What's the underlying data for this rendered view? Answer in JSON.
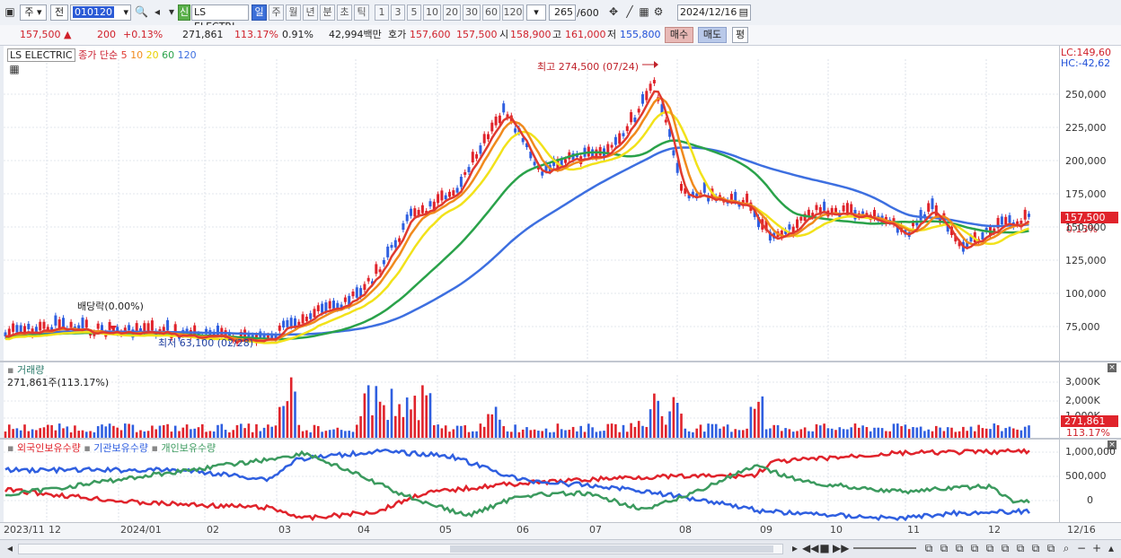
{
  "toolbar": {
    "market": "주",
    "prev": "전",
    "code": "010120",
    "stock_name": "LS ELECTRI",
    "badge_new": "신",
    "periods": [
      "일",
      "주",
      "월",
      "년",
      "분",
      "초",
      "틱"
    ],
    "active_period": "일",
    "intervals": [
      "1",
      "3",
      "5",
      "10",
      "20",
      "30",
      "60",
      "120"
    ],
    "count": "265",
    "count_max": "/600",
    "date": "2024/12/16"
  },
  "quote": {
    "price": "157,500",
    "change": "200",
    "change_pct": "+0.13%",
    "volume": "271,861",
    "vol_ratio": "113.17%",
    "turnover": "0.91%",
    "amount": "42,994백만",
    "bid_label": "호가",
    "bid": "157,600",
    "ask": "157,500",
    "open_label": "시",
    "open": "158,900",
    "high_label": "고",
    "high": "161,000",
    "low_label": "저",
    "low": "155,800",
    "buy": "매수",
    "sell": "매도",
    "eval": "평"
  },
  "price_panel": {
    "name": "LS ELECTRIC",
    "ma_label": "종가 단순",
    "ma_periods": [
      "5",
      "10",
      "20",
      "60",
      "120"
    ],
    "ma_colors": [
      "#e03a2f",
      "#f08a1d",
      "#f2e21a",
      "#2aa24a",
      "#3d6fe0"
    ],
    "lc": "LC:149,60",
    "hc": "HC:-42,62",
    "high_note": "최고 274,500 (07/24)",
    "low_note": "최저 63,100 (02/28)",
    "dividend_note": "배당락(0.00%)",
    "last_price": "157,500",
    "last_pct": "0.13%",
    "y_ticks": [
      "250,000",
      "225,000",
      "200,000",
      "175,000",
      "150,000",
      "125,000",
      "100,000",
      "75,000"
    ]
  },
  "volume_panel": {
    "title": "거래량",
    "value": "271,861주(113.17%)",
    "y_ticks": [
      "3,000K",
      "2,000K",
      "1,000K"
    ],
    "last": "271,861",
    "last_pct": "113.17%"
  },
  "holding_panel": {
    "series": [
      "외국인보유수량",
      "기관보유수량",
      "개인보유수량"
    ],
    "colors": [
      "#e0232b",
      "#2f5fe0",
      "#3b9a5e"
    ],
    "y_ticks": [
      "1,000,000",
      "500,000",
      "0"
    ]
  },
  "x_axis": {
    "labels": [
      "2023/11",
      "12",
      "2024/01",
      "02",
      "03",
      "04",
      "05",
      "06",
      "07",
      "08",
      "09",
      "10",
      "11",
      "12"
    ],
    "end_label": "12/16"
  }
}
